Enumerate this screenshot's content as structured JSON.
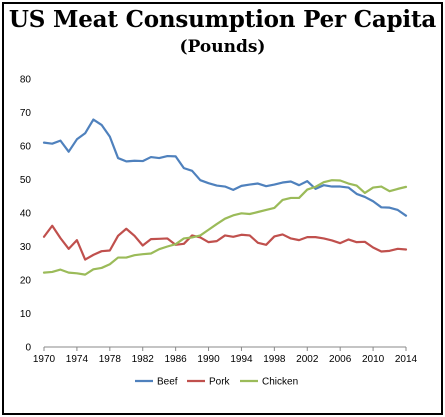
{
  "chart_data": {
    "type": "line",
    "title": "US Meat Consumption Per Capita",
    "subtitle": "(Pounds)",
    "xlabel": "",
    "ylabel": "",
    "xlim": [
      1970,
      2014
    ],
    "ylim": [
      0,
      80
    ],
    "y_ticks": [
      0,
      10,
      20,
      30,
      40,
      50,
      60,
      70,
      80
    ],
    "x_ticks": [
      "1970",
      "1974",
      "1978",
      "1982",
      "1986",
      "1990",
      "1994",
      "1998",
      "2002",
      "2006",
      "2010",
      "2014"
    ],
    "grid": false,
    "legend": "bottom",
    "x": [
      1970,
      1971,
      1972,
      1973,
      1974,
      1975,
      1976,
      1977,
      1978,
      1979,
      1980,
      1981,
      1982,
      1983,
      1984,
      1985,
      1986,
      1987,
      1988,
      1989,
      1990,
      1991,
      1992,
      1993,
      1994,
      1995,
      1996,
      1997,
      1998,
      1999,
      2000,
      2001,
      2002,
      2003,
      2004,
      2005,
      2006,
      2007,
      2008,
      2009,
      2010,
      2011,
      2012,
      2013,
      2014
    ],
    "series": [
      {
        "name": "Beef",
        "color": "#4F81BD",
        "values": [
          61.0,
          60.7,
          61.6,
          58.3,
          62.0,
          63.8,
          67.9,
          66.3,
          62.8,
          56.4,
          55.4,
          55.6,
          55.5,
          56.7,
          56.4,
          57.0,
          56.9,
          53.4,
          52.6,
          49.8,
          48.9,
          48.2,
          47.9,
          46.9,
          48.1,
          48.5,
          48.8,
          48.0,
          48.5,
          49.1,
          49.4,
          48.3,
          49.5,
          47.2,
          48.3,
          47.9,
          47.9,
          47.6,
          45.7,
          44.8,
          43.5,
          41.7,
          41.6,
          40.9,
          39.2
        ]
      },
      {
        "name": "Pork",
        "color": "#C0504D",
        "values": [
          32.9,
          36.2,
          32.5,
          29.3,
          31.9,
          26.1,
          27.5,
          28.6,
          28.8,
          33.2,
          35.3,
          33.2,
          30.3,
          32.2,
          32.3,
          32.4,
          30.5,
          30.8,
          33.3,
          32.7,
          31.3,
          31.6,
          33.3,
          32.9,
          33.5,
          33.3,
          31.1,
          30.5,
          33.0,
          33.6,
          32.4,
          31.9,
          32.8,
          32.8,
          32.4,
          31.8,
          31.0,
          32.1,
          31.3,
          31.4,
          29.7,
          28.5,
          28.7,
          29.3,
          29.1
        ]
      },
      {
        "name": "Chicken",
        "color": "#9BBB59",
        "values": [
          22.2,
          22.4,
          23.1,
          22.2,
          22.0,
          21.6,
          23.2,
          23.6,
          24.7,
          26.7,
          26.7,
          27.4,
          27.7,
          27.9,
          29.2,
          30.0,
          30.7,
          32.4,
          32.7,
          33.3,
          35.0,
          36.7,
          38.3,
          39.3,
          39.9,
          39.7,
          40.3,
          40.9,
          41.5,
          43.9,
          44.5,
          44.5,
          47.0,
          47.8,
          49.2,
          49.8,
          49.7,
          48.8,
          48.2,
          46.0,
          47.6,
          47.9,
          46.5,
          47.2,
          47.8
        ]
      }
    ]
  }
}
